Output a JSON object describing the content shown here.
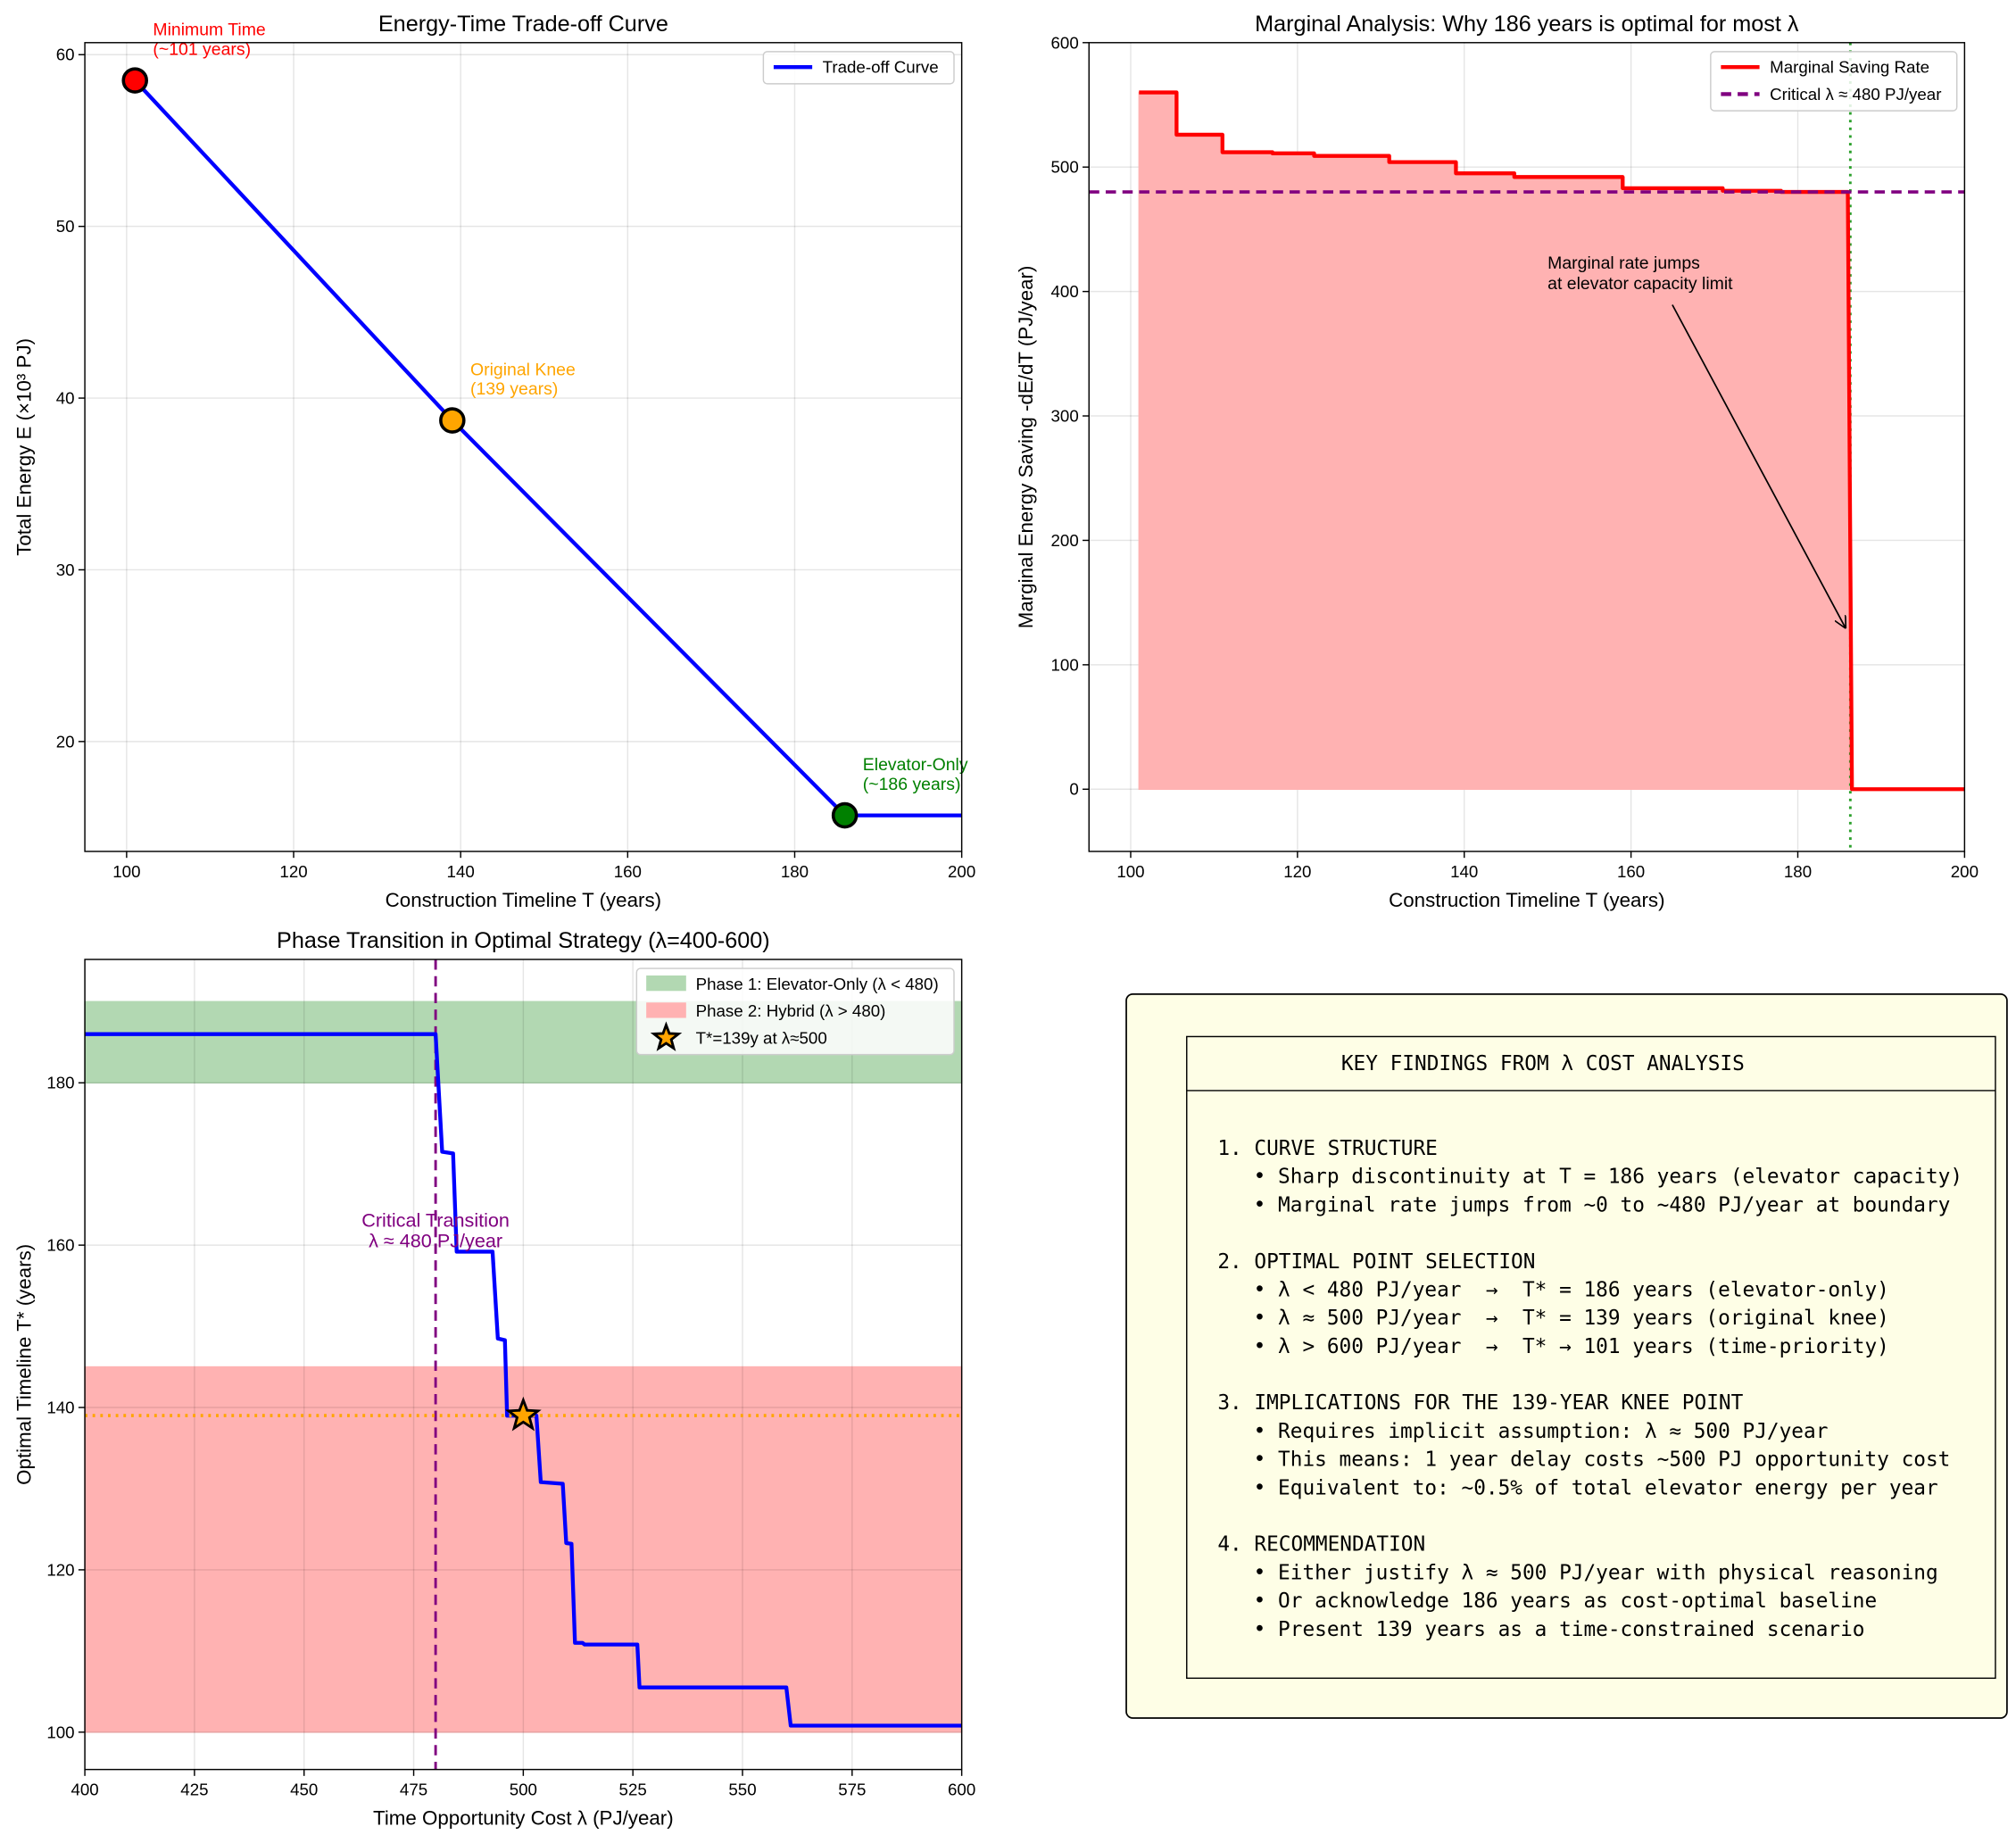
{
  "chart_data": [
    {
      "type": "line",
      "title": "Energy-Time Trade-off Curve",
      "xlabel": "Construction Timeline T (years)",
      "ylabel": "Total Energy E (×10³ PJ)",
      "x": [
        101,
        139,
        186,
        200
      ],
      "series": [
        {
          "name": "Trade-off Curve",
          "color": "#0000ff",
          "values": [
            58.5,
            38.7,
            15.7,
            15.7
          ]
        }
      ],
      "points": [
        {
          "x": 101,
          "y": 58.5,
          "color": "#ff0000",
          "label": [
            "Minimum Time",
            "(~101 years)"
          ]
        },
        {
          "x": 139,
          "y": 38.7,
          "color": "#ffa500",
          "label": [
            "Original Knee",
            "(139 years)"
          ]
        },
        {
          "x": 186,
          "y": 15.7,
          "color": "#008000",
          "label": [
            "Elevator-Only",
            "(~186 years)"
          ]
        }
      ],
      "xlim": [
        95,
        200
      ],
      "xticks": [
        100,
        120,
        140,
        160,
        180,
        200
      ],
      "ylim": [
        13.6,
        60.7
      ],
      "yticks": [
        20,
        30,
        40,
        50,
        60
      ],
      "grid": true,
      "legend": "upper right"
    },
    {
      "type": "line",
      "title": "Marginal Analysis: Why 186 years is optimal for most λ",
      "xlabel": "Construction Timeline T (years)",
      "ylabel": "Marginal Energy Saving -dE/dT (PJ/year)",
      "x": [
        101,
        105.5,
        105.5,
        111,
        111,
        117,
        117,
        122,
        122,
        131,
        131,
        139,
        139,
        146,
        146,
        159,
        159,
        171,
        171,
        178,
        178,
        186,
        186.5,
        200
      ],
      "series": [
        {
          "name": "Marginal Saving Rate",
          "color": "#ff0000",
          "fill": "#ffb2b2",
          "values": [
            560,
            560,
            526,
            526,
            512,
            512,
            511,
            511,
            509,
            509,
            504,
            504,
            495,
            495,
            492,
            492,
            483,
            483,
            481,
            481,
            480,
            480,
            0,
            0
          ]
        }
      ],
      "hlines": [
        {
          "value": 480,
          "color": "#800080",
          "style": "dashed",
          "name": "Critical λ ≈ 480 PJ/year"
        }
      ],
      "vlines": [
        {
          "value": 186.3,
          "color": "#2ca02c",
          "style": "dotted"
        }
      ],
      "annotations": [
        {
          "text": [
            "Marginal rate jumps",
            "at elevator capacity limit"
          ],
          "color": "#000000"
        }
      ],
      "xlim": [
        95,
        200
      ],
      "xticks": [
        100,
        120,
        140,
        160,
        180,
        200
      ],
      "ylim": [
        -50,
        600
      ],
      "yticks": [
        0,
        100,
        200,
        300,
        400,
        500,
        600
      ],
      "grid": true,
      "legend": "upper right"
    },
    {
      "type": "line",
      "title": "Phase Transition in Optimal Strategy (λ=400-600)",
      "xlabel": "Time Opportunity Cost λ (PJ/year)",
      "ylabel": "Optimal Timeline T* (years)",
      "x": [
        400,
        480,
        481.5,
        484,
        484.8,
        493,
        494.2,
        495.8,
        496.3,
        503,
        504,
        509,
        509.8,
        511,
        511.8,
        513.5,
        514,
        526,
        526.5,
        560,
        561,
        600
      ],
      "series": [
        {
          "color": "#0000ff",
          "values": [
            186,
            186,
            171.5,
            171.3,
            159.2,
            159.2,
            148.5,
            148.3,
            139,
            139,
            130.8,
            130.6,
            123.3,
            123.2,
            111,
            111,
            110.8,
            110.8,
            105.5,
            105.5,
            100.8,
            100.8
          ]
        }
      ],
      "bands": [
        {
          "name": "Phase 1: Elevator-Only (λ < 480)",
          "color": "#b2d8b2",
          "range": [
            180,
            190
          ]
        },
        {
          "name": "Phase 2: Hybrid (λ > 480)",
          "color": "#ffb2b2",
          "range": [
            100,
            145
          ]
        }
      ],
      "vlines": [
        {
          "value": 480,
          "color": "#800080",
          "style": "dashed"
        }
      ],
      "hlines": [
        {
          "value": 139,
          "color": "#ffa500",
          "style": "dotted"
        }
      ],
      "points": [
        {
          "x": 500,
          "y": 139,
          "color": "#ffa500",
          "marker": "star",
          "name": "T*=139y at λ≈500"
        }
      ],
      "annotations": [
        {
          "text": [
            "Critical Transition",
            "λ ≈ 480 PJ/year"
          ],
          "color": "#800080"
        }
      ],
      "xlim": [
        400,
        600
      ],
      "xticks": [
        400,
        425,
        450,
        475,
        500,
        525,
        550,
        575,
        600
      ],
      "ylim": [
        95.4,
        195.2
      ],
      "yticks": [
        100,
        120,
        140,
        160,
        180
      ],
      "grid": true,
      "legend": "upper right"
    }
  ],
  "findings": {
    "title": "KEY FINDINGS FROM λ COST ANALYSIS",
    "sections": [
      {
        "heading": "1. CURVE STRUCTURE",
        "items": [
          "• Sharp discontinuity at T = 186 years (elevator capacity)",
          "• Marginal rate jumps from ~0 to ~480 PJ/year at boundary"
        ]
      },
      {
        "heading": "2. OPTIMAL POINT SELECTION",
        "items": [
          "• λ < 480 PJ/year  →  T* = 186 years (elevator-only)",
          "• λ ≈ 500 PJ/year  →  T* = 139 years (original knee)",
          "• λ > 600 PJ/year  →  T* → 101 years (time-priority)"
        ]
      },
      {
        "heading": "3. IMPLICATIONS FOR THE 139-YEAR KNEE POINT",
        "items": [
          "• Requires implicit assumption: λ ≈ 500 PJ/year",
          "• This means: 1 year delay costs ~500 PJ opportunity cost",
          "• Equivalent to: ~0.5% of total elevator energy per year"
        ]
      },
      {
        "heading": "4. RECOMMENDATION",
        "items": [
          "• Either justify λ ≈ 500 PJ/year with physical reasoning",
          "• Or acknowledge 186 years as cost-optimal baseline",
          "• Present 139 years as a time-constrained scenario"
        ]
      }
    ]
  }
}
